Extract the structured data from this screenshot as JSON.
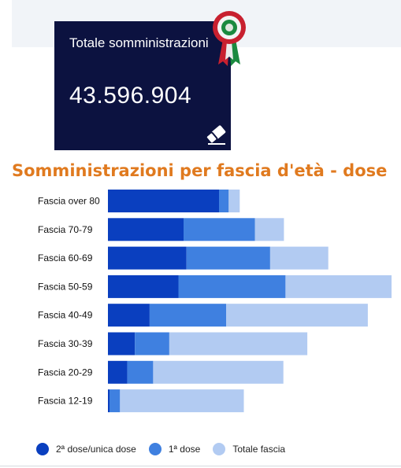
{
  "stat": {
    "label": "Totale somministrazioni",
    "value": "43.596.904"
  },
  "icons": {
    "eraser": "eraser-icon",
    "cockade": "italian-cockade-icon"
  },
  "chart_data": {
    "type": "bar",
    "orientation": "horizontal",
    "title": "Somministrazioni per fascia d'età - dose",
    "categories": [
      "Fascia over 80",
      "Fascia 70-79",
      "Fascia 60-69",
      "Fascia 50-59",
      "Fascia 40-49",
      "Fascia 30-39",
      "Fascia 20-29",
      "Fascia 12-19"
    ],
    "series": [
      {
        "name": "2ª dose/unica dose",
        "color": "#0a3fbf",
        "values": [
          4.13,
          2.81,
          2.92,
          2.62,
          1.55,
          1.0,
          0.72,
          0.06
        ]
      },
      {
        "name": "1ª dose",
        "color": "#3f80e0",
        "values": [
          0.36,
          2.65,
          3.11,
          3.98,
          2.85,
          1.28,
          0.96,
          0.39
        ]
      },
      {
        "name": "Totale fascia",
        "color": "#b2cbf2",
        "values": [
          0.41,
          1.08,
          2.16,
          3.94,
          5.26,
          5.13,
          4.84,
          4.6
        ]
      }
    ],
    "stacked": true,
    "unit": "millions (estimated)",
    "xlim": [
      0,
      10.6
    ],
    "legend_position": "bottom",
    "grid": false
  }
}
